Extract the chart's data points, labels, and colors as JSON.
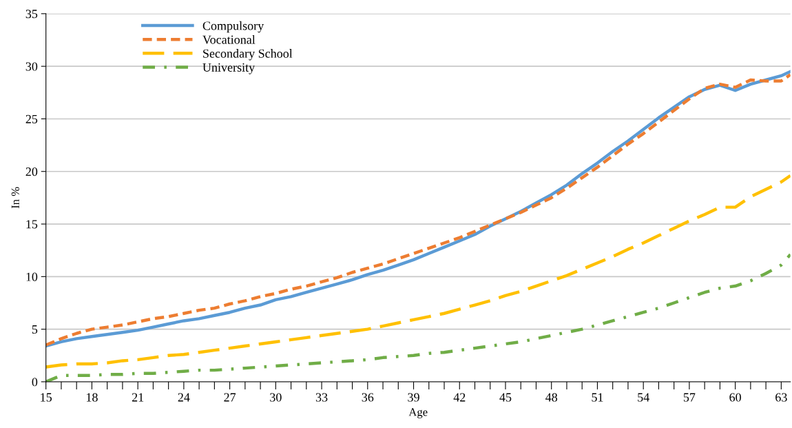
{
  "chart_data": {
    "type": "line",
    "xlabel": "Age",
    "ylabel": "In %",
    "x": [
      15,
      16,
      17,
      18,
      19,
      20,
      21,
      22,
      23,
      24,
      25,
      26,
      27,
      28,
      29,
      30,
      31,
      32,
      33,
      34,
      35,
      36,
      37,
      38,
      39,
      40,
      41,
      42,
      43,
      44,
      45,
      46,
      47,
      48,
      49,
      50,
      51,
      52,
      53,
      54,
      55,
      56,
      57,
      58,
      59,
      60,
      61,
      62,
      63,
      63.6
    ],
    "xlim": [
      15,
      63.6
    ],
    "xticks": [
      15,
      {
        "value": 16,
        "label": null
      },
      {
        "value": 17,
        "label": null
      },
      18,
      {
        "value": 19,
        "label": null
      },
      {
        "value": 20,
        "label": null
      },
      21,
      {
        "value": 22,
        "label": null
      },
      {
        "value": 23,
        "label": null
      },
      24,
      {
        "value": 25,
        "label": null
      },
      {
        "value": 26,
        "label": null
      },
      27,
      {
        "value": 28,
        "label": null
      },
      {
        "value": 29,
        "label": null
      },
      30,
      {
        "value": 31,
        "label": null
      },
      {
        "value": 32,
        "label": null
      },
      33,
      {
        "value": 34,
        "label": null
      },
      {
        "value": 35,
        "label": null
      },
      36,
      {
        "value": 37,
        "label": null
      },
      {
        "value": 38,
        "label": null
      },
      39,
      {
        "value": 40,
        "label": null
      },
      {
        "value": 41,
        "label": null
      },
      42,
      {
        "value": 43,
        "label": null
      },
      {
        "value": 44,
        "label": null
      },
      45,
      {
        "value": 46,
        "label": null
      },
      {
        "value": 47,
        "label": null
      },
      48,
      {
        "value": 49,
        "label": null
      },
      {
        "value": 50,
        "label": null
      },
      51,
      {
        "value": 52,
        "label": null
      },
      {
        "value": 53,
        "label": null
      },
      54,
      {
        "value": 55,
        "label": null
      },
      {
        "value": 56,
        "label": null
      },
      57,
      {
        "value": 58,
        "label": null
      },
      {
        "value": 59,
        "label": null
      },
      60,
      {
        "value": 61,
        "label": null
      },
      {
        "value": 62,
        "label": null
      },
      63
    ],
    "ylim": [
      0,
      35
    ],
    "yticks": [
      0,
      5,
      10,
      15,
      20,
      25,
      30,
      35
    ],
    "grid": "y",
    "legend": "top left",
    "marker": "none",
    "series": [
      {
        "name": "Compulsory",
        "color": "#5b9bd5",
        "line_style": "solid",
        "values": [
          3.4,
          3.8,
          4.1,
          4.3,
          4.5,
          4.7,
          4.9,
          5.2,
          5.5,
          5.8,
          6.0,
          6.3,
          6.6,
          7.0,
          7.3,
          7.8,
          8.1,
          8.5,
          8.9,
          9.3,
          9.7,
          10.2,
          10.6,
          11.1,
          11.6,
          12.2,
          12.8,
          13.4,
          14.0,
          14.8,
          15.5,
          16.2,
          17.0,
          17.8,
          18.7,
          19.8,
          20.8,
          21.9,
          22.9,
          24.0,
          25.1,
          26.1,
          27.1,
          27.8,
          28.2,
          27.7,
          28.3,
          28.7,
          29.1,
          29.5
        ]
      },
      {
        "name": "Vocational",
        "color": "#ed7d31",
        "line_style": "dashed",
        "values": [
          3.5,
          4.1,
          4.6,
          5.0,
          5.2,
          5.4,
          5.7,
          6.0,
          6.2,
          6.5,
          6.8,
          7.0,
          7.4,
          7.7,
          8.1,
          8.4,
          8.8,
          9.1,
          9.5,
          9.9,
          10.4,
          10.8,
          11.2,
          11.7,
          12.2,
          12.7,
          13.2,
          13.7,
          14.3,
          14.9,
          15.5,
          16.1,
          16.8,
          17.5,
          18.4,
          19.4,
          20.4,
          21.5,
          22.6,
          23.6,
          24.7,
          25.8,
          26.9,
          27.9,
          28.3,
          28.0,
          28.7,
          28.6,
          28.6,
          29.2
        ]
      },
      {
        "name": "Secondary School",
        "color": "#ffc000",
        "line_style": "longdash",
        "values": [
          1.4,
          1.6,
          1.7,
          1.7,
          1.8,
          2.0,
          2.1,
          2.3,
          2.5,
          2.6,
          2.8,
          3.0,
          3.2,
          3.4,
          3.6,
          3.8,
          4.0,
          4.2,
          4.4,
          4.6,
          4.8,
          5.0,
          5.3,
          5.6,
          5.9,
          6.2,
          6.5,
          6.9,
          7.3,
          7.7,
          8.2,
          8.6,
          9.1,
          9.6,
          10.1,
          10.7,
          11.3,
          11.9,
          12.6,
          13.2,
          13.9,
          14.6,
          15.3,
          15.9,
          16.6,
          16.6,
          17.6,
          18.3,
          19.0,
          19.6
        ]
      },
      {
        "name": "University",
        "color": "#70ad47",
        "line_style": "dashdot",
        "values": [
          0.0,
          0.6,
          0.6,
          0.6,
          0.7,
          0.7,
          0.8,
          0.8,
          0.9,
          1.0,
          1.1,
          1.1,
          1.2,
          1.3,
          1.4,
          1.5,
          1.6,
          1.7,
          1.8,
          1.9,
          2.0,
          2.1,
          2.3,
          2.4,
          2.5,
          2.7,
          2.8,
          3.0,
          3.2,
          3.4,
          3.6,
          3.8,
          4.1,
          4.4,
          4.7,
          5.0,
          5.4,
          5.8,
          6.2,
          6.6,
          7.0,
          7.5,
          8.0,
          8.5,
          8.9,
          9.1,
          9.6,
          10.3,
          11.1,
          12.1
        ]
      }
    ]
  }
}
